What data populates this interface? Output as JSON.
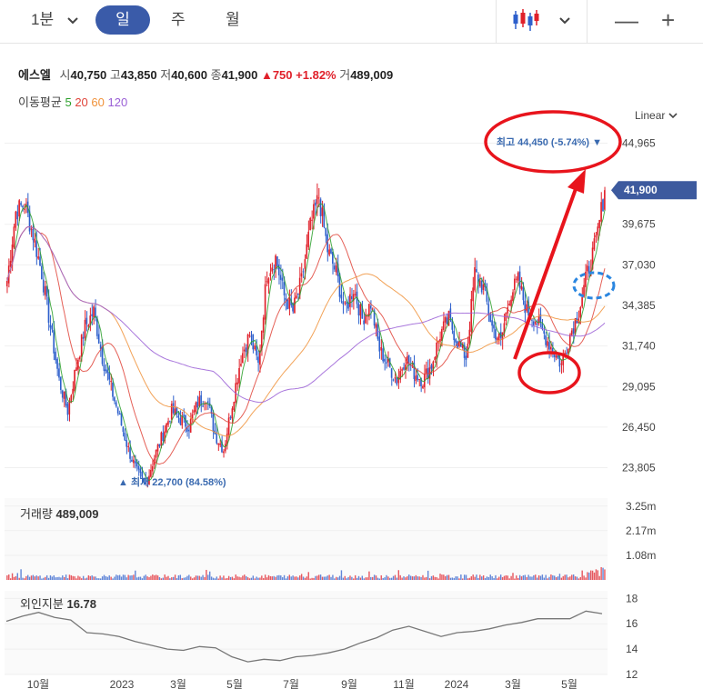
{
  "toolbar": {
    "interval": "1분",
    "tabs": [
      "일",
      "주",
      "월"
    ],
    "active_tab": "일"
  },
  "stock": {
    "name": "에스엘",
    "open_label": "시",
    "open": "40,750",
    "high_label": "고",
    "high": "43,850",
    "low_label": "저",
    "low": "40,600",
    "close_label": "종",
    "close": "41,900",
    "change": "750",
    "change_pct": "+1.82%",
    "volume_label": "거",
    "volume": "489,009"
  },
  "ma_legend": {
    "label": "이동평균",
    "periods": [
      {
        "name": "5",
        "color": "#2ca02c"
      },
      {
        "name": "20",
        "color": "#e0443a"
      },
      {
        "name": "60",
        "color": "#f0923a"
      },
      {
        "name": "120",
        "color": "#9a5fd6"
      }
    ]
  },
  "scale_mode": "Linear",
  "colors": {
    "up": "#e0202a",
    "down": "#2d5fcc",
    "accent": "#3a5ba9",
    "price_tag": "#3d5a9e"
  },
  "chart_data": {
    "type": "candlestick",
    "price_axis": {
      "ticks": [
        "44,965",
        "39,675",
        "37,030",
        "34,385",
        "31,740",
        "29,095",
        "26,450",
        "23,805"
      ],
      "tick_values": [
        44965,
        39675,
        37030,
        34385,
        31740,
        29095,
        26450,
        23805
      ],
      "ylim": [
        22000,
        46000
      ],
      "current_label": "41,900",
      "current_value": 41900
    },
    "x_axis": {
      "ticks": [
        "10월",
        "2023",
        "3월",
        "5월",
        "7월",
        "9월",
        "11월",
        "2024",
        "3월",
        "5월"
      ]
    },
    "annotations": {
      "high": {
        "prefix": "최고",
        "value": "44,450",
        "pct": "(-5.74%)",
        "price": 44450
      },
      "low": {
        "prefix": "최저",
        "value": "22,700",
        "pct": "(84.58%)",
        "price": 22700
      }
    },
    "close_series": [
      36000,
      40500,
      41000,
      39000,
      36500,
      33000,
      29500,
      27500,
      30500,
      33000,
      34000,
      31000,
      29000,
      27000,
      25000,
      23500,
      22700,
      24500,
      26000,
      27500,
      27000,
      26500,
      28000,
      28500,
      26000,
      25000,
      28000,
      31000,
      32500,
      30500,
      36500,
      37500,
      35000,
      34000,
      36000,
      39500,
      41500,
      38000,
      36500,
      34000,
      35500,
      33500,
      34500,
      31500,
      30500,
      29500,
      31000,
      30000,
      29500,
      30500,
      32500,
      33500,
      32000,
      31000,
      36500,
      35500,
      33000,
      32000,
      35000,
      36000,
      34000,
      33500,
      32500,
      31500,
      30500,
      32500,
      34000,
      36500,
      38500,
      41900
    ],
    "volume_pane": {
      "title": "거래량",
      "value": "489,009",
      "ticks": [
        "3.25m",
        "2.17m",
        "1.08m"
      ],
      "tick_values": [
        3250000,
        2170000,
        1080000
      ]
    },
    "foreign_pane": {
      "title": "외인지분",
      "value": "16.78",
      "ticks": [
        "18",
        "16",
        "14",
        "12"
      ],
      "tick_values": [
        18,
        16,
        14,
        12
      ],
      "series": [
        16.2,
        16.6,
        16.9,
        16.5,
        16.3,
        15.3,
        15.2,
        15.0,
        14.6,
        14.3,
        14.0,
        13.9,
        14.2,
        14.1,
        13.4,
        13.0,
        13.2,
        13.1,
        13.4,
        13.5,
        13.7,
        14.0,
        14.5,
        14.9,
        15.5,
        15.8,
        15.4,
        15.0,
        15.3,
        15.4,
        15.6,
        15.9,
        16.1,
        16.4,
        16.4,
        16.4,
        17.0,
        16.8
      ]
    }
  }
}
